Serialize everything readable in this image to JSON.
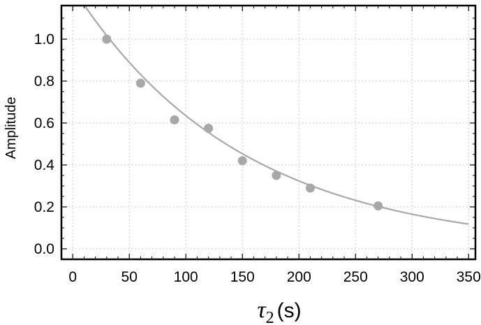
{
  "chart_data": {
    "type": "scatter",
    "xlabel": {
      "symbol": "τ",
      "subscript": "2",
      "unit": "(s)"
    },
    "ylabel": "Amplitude",
    "xlim": [
      -10,
      356
    ],
    "ylim": [
      -0.05,
      1.16
    ],
    "xticks": [
      0,
      50,
      100,
      150,
      200,
      250,
      300,
      350
    ],
    "yticks": [
      0.0,
      0.2,
      0.4,
      0.6,
      0.8,
      1.0
    ],
    "xtick_labels": [
      "0",
      "50",
      "100",
      "150",
      "200",
      "250",
      "300",
      "350"
    ],
    "ytick_labels": [
      "0.0",
      "0.2",
      "0.4",
      "0.6",
      "0.8",
      "1.0"
    ],
    "grid": true,
    "series": [
      {
        "kind": "points",
        "x": [
          30,
          60,
          90,
          120,
          150,
          180,
          210,
          270
        ],
        "y": [
          1.0,
          0.79,
          0.615,
          0.575,
          0.42,
          0.35,
          0.29,
          0.205
        ]
      },
      {
        "kind": "fit-curve",
        "model": "A*exp(-x/tau)",
        "A": 1.245,
        "tau": 148.5
      }
    ],
    "colors": {
      "points": "#a8a8a8",
      "curve": "#a8a8a8",
      "grid": "#c8c8c8",
      "frame": "#000000"
    }
  }
}
